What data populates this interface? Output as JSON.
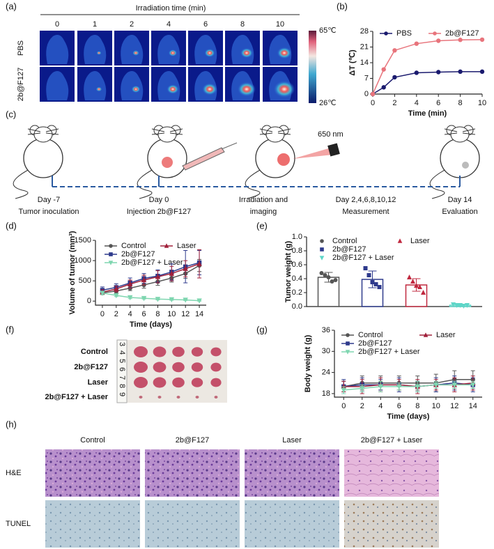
{
  "panel_labels": [
    "(a)",
    "(b)",
    "(c)",
    "(d)",
    "(e)",
    "(f)",
    "(g)",
    "(h)"
  ],
  "thermal": {
    "title": "Irradiation time (min)",
    "times": [
      "0",
      "1",
      "2",
      "4",
      "6",
      "8",
      "10"
    ],
    "rows": [
      "PBS",
      "2b@F127"
    ],
    "colorbar": {
      "max_label": "65℃",
      "min_label": "26℃"
    }
  },
  "schematic": {
    "wavelength": "650 nm",
    "steps": [
      {
        "day": "Day -7",
        "label": "Tumor inoculation"
      },
      {
        "day": "Day 0",
        "label": "Injection 2b@F127"
      },
      {
        "day": "Irradiation and",
        "label": "imaging"
      },
      {
        "day": "Day 2,4,6,8,10,12",
        "label": "Measurement"
      },
      {
        "day": "Day 14",
        "label": "Evaluation"
      }
    ]
  },
  "photo": {
    "rows": [
      "Control",
      "2b@F127",
      "Laser",
      "2b@F127 + Laser"
    ],
    "ruler": [
      "3",
      "4",
      "5",
      "6",
      "7",
      "8",
      "9"
    ]
  },
  "histology": {
    "columns": [
      "Control",
      "2b@F127",
      "Laser",
      "2b@F127 + Laser"
    ],
    "rows": [
      "H&E",
      "TUNEL"
    ]
  },
  "chart_data": [
    {
      "type": "line",
      "xlabel": "Time (min)",
      "ylabel": "ΔT (℃)",
      "x": [
        0,
        1,
        2,
        4,
        6,
        8,
        10
      ],
      "xlim": [
        0,
        10
      ],
      "xticks": [
        0,
        2,
        4,
        6,
        8,
        10
      ],
      "ylim": [
        0,
        28
      ],
      "yticks": [
        0,
        7,
        14,
        21,
        28
      ],
      "series": [
        {
          "name": "PBS",
          "color": "#1a1a6e",
          "marker": "circle",
          "values": [
            0,
            3,
            7.5,
            9.5,
            9.8,
            10,
            10
          ]
        },
        {
          "name": "2b@F127",
          "color": "#e8747c",
          "marker": "circle",
          "values": [
            0,
            11,
            19.5,
            22.5,
            23.8,
            24.2,
            24.3
          ]
        }
      ]
    },
    {
      "type": "line",
      "xlabel": "Time (days)",
      "ylabel": "Volume of tumor (mm³)",
      "x": [
        0,
        2,
        4,
        6,
        8,
        10,
        12,
        14
      ],
      "xlim": [
        -1,
        15
      ],
      "xticks": [
        0,
        2,
        4,
        6,
        8,
        10,
        12,
        14
      ],
      "ylim": [
        -100,
        1500
      ],
      "yticks": [
        0,
        500,
        1000,
        1500
      ],
      "series": [
        {
          "name": "Control",
          "color": "#555555",
          "marker": "circle",
          "values": [
            200,
            250,
            320,
            400,
            480,
            570,
            680,
            880
          ],
          "errors": [
            40,
            50,
            60,
            80,
            90,
            100,
            120,
            150
          ]
        },
        {
          "name": "2b@F127",
          "color": "#2e3a8c",
          "marker": "square",
          "values": [
            270,
            340,
            450,
            560,
            620,
            720,
            850,
            950
          ],
          "errors": [
            80,
            90,
            120,
            120,
            150,
            200,
            400,
            300
          ]
        },
        {
          "name": "Laser",
          "color": "#a0203a",
          "marker": "triangle",
          "values": [
            220,
            300,
            420,
            520,
            600,
            680,
            800,
            920
          ],
          "errors": [
            60,
            70,
            100,
            120,
            150,
            180,
            200,
            350
          ]
        },
        {
          "name": "2b@F127 + Laser",
          "color": "#7fd6b0",
          "marker": "triangle-down",
          "values": [
            200,
            140,
            90,
            70,
            50,
            40,
            30,
            10
          ],
          "errors": [
            40,
            30,
            30,
            20,
            20,
            20,
            15,
            10
          ]
        }
      ]
    },
    {
      "type": "bar",
      "ylabel": "Tumor weight (g)",
      "ylim": [
        0,
        1.0
      ],
      "yticks": [
        {
          "value": 0,
          "label": "0.0"
        },
        0.2,
        0.4,
        0.6,
        0.8,
        {
          "value": 1.0,
          "label": "1.0"
        }
      ],
      "series": [
        {
          "name": "Control",
          "color": "#555555",
          "marker": "circle",
          "values": [
            0.42
          ],
          "errors": [
            0.07
          ],
          "points": [
            0.48,
            0.45,
            0.42,
            0.36,
            0.38
          ]
        },
        {
          "name": "2b@F127",
          "color": "#2e3a8c",
          "marker": "square",
          "values": [
            0.39
          ],
          "errors": [
            0.12
          ],
          "points": [
            0.55,
            0.45,
            0.35,
            0.32,
            0.28
          ]
        },
        {
          "name": "Laser",
          "color": "#c0283f",
          "marker": "triangle",
          "values": [
            0.31
          ],
          "errors": [
            0.09
          ],
          "points": [
            0.42,
            0.36,
            0.3,
            0.28,
            0.2
          ]
        },
        {
          "name": "2b@F127 + Laser",
          "color": "#5ed6c8",
          "marker": "triangle-down",
          "values": [
            0.02
          ],
          "errors": [
            0.01
          ],
          "points": [
            0.03,
            0.02,
            0.02,
            0.01,
            0.02
          ]
        }
      ]
    },
    {
      "type": "line",
      "xlabel": "Time (days)",
      "ylabel": "Body weight (g)",
      "x": [
        0,
        2,
        4,
        6,
        8,
        10,
        12,
        14
      ],
      "xlim": [
        -1,
        15
      ],
      "xticks": [
        0,
        2,
        4,
        6,
        8,
        10,
        12,
        14
      ],
      "ylim": [
        17,
        36
      ],
      "yticks": [
        18,
        24,
        30,
        36
      ],
      "series": [
        {
          "name": "Control",
          "color": "#555555",
          "marker": "circle",
          "values": [
            20,
            21,
            21,
            21,
            21,
            21,
            22,
            22
          ],
          "errors": [
            1.5,
            2,
            2,
            2,
            2,
            2.5,
            2.5,
            2.5
          ]
        },
        {
          "name": "2b@F127",
          "color": "#2e3a8c",
          "marker": "square",
          "values": [
            20,
            20.5,
            20.5,
            20.5,
            20,
            20.5,
            21,
            20.5
          ],
          "errors": [
            2,
            2,
            1.5,
            2,
            1.5,
            2,
            2,
            2
          ]
        },
        {
          "name": "Laser",
          "color": "#a0203a",
          "marker": "triangle",
          "values": [
            20,
            20,
            20.5,
            20.5,
            20,
            20.5,
            20.5,
            21
          ],
          "errors": [
            1.5,
            2,
            2,
            1.5,
            2,
            1.5,
            2,
            2
          ]
        },
        {
          "name": "2b@F127 + Laser",
          "color": "#7fd6b0",
          "marker": "triangle-down",
          "values": [
            19,
            19.5,
            20,
            20,
            20,
            20.5,
            20.5,
            20.5
          ],
          "errors": [
            1,
            1,
            1.5,
            1,
            1.5,
            1,
            1,
            1
          ]
        }
      ]
    }
  ]
}
